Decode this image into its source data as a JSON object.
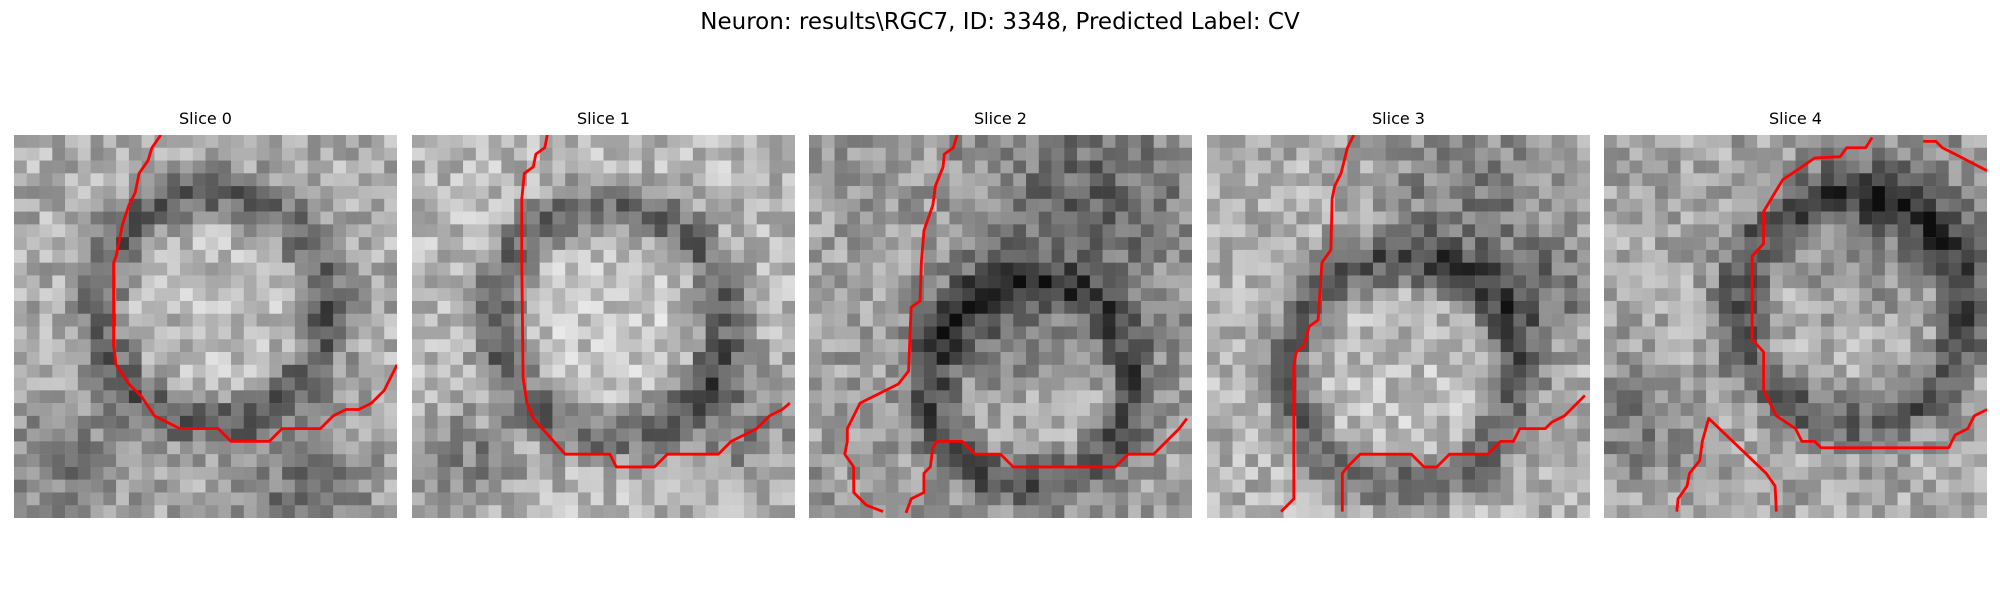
{
  "figure": {
    "title": "Neuron: results\\RGC7, ID: 3348, Predicted Label: CV"
  },
  "panels": [
    {
      "title": "Slice 0"
    },
    {
      "title": "Slice 1"
    },
    {
      "title": "Slice 2"
    },
    {
      "title": "Slice 3"
    },
    {
      "title": "Slice 4"
    }
  ],
  "colors": {
    "contour": "#ff0000",
    "background": "#ffffff"
  },
  "image": {
    "grid": 30,
    "colormap": "grayscale"
  }
}
